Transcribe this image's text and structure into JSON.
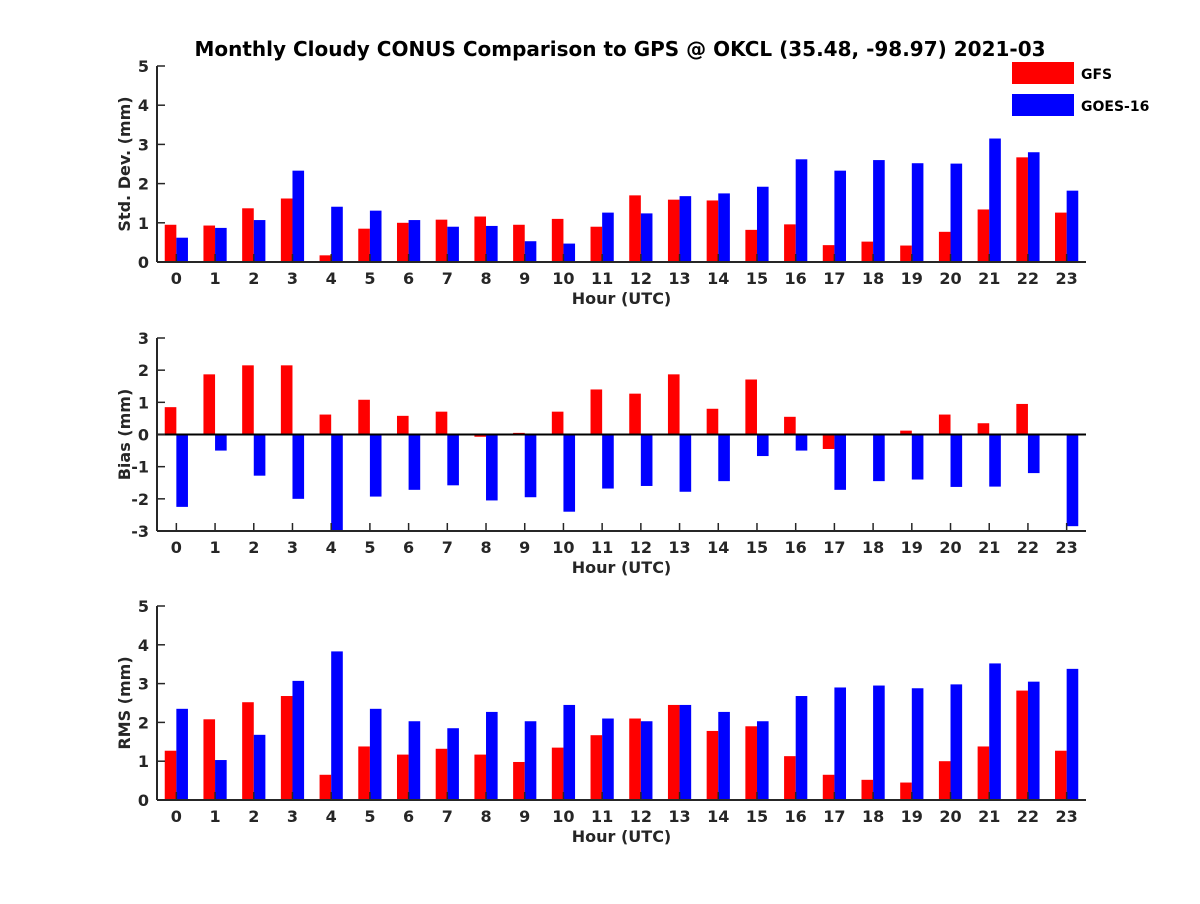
{
  "chart_data": {
    "type": "bar",
    "title": "Monthly Cloudy CONUS Comparison to GPS @ OKCL (35.48, -98.97) 2021-03",
    "legend": {
      "placement": "top-right",
      "entries": [
        {
          "name": "GFS",
          "color": "#ff0000"
        },
        {
          "name": "GOES-16",
          "color": "#0000ff"
        }
      ]
    },
    "categories": [
      "0",
      "1",
      "2",
      "3",
      "4",
      "5",
      "6",
      "7",
      "8",
      "9",
      "10",
      "11",
      "12",
      "13",
      "14",
      "15",
      "16",
      "17",
      "18",
      "19",
      "20",
      "21",
      "22",
      "23"
    ],
    "panels": [
      {
        "ylabel": "Std. Dev. (mm)",
        "xlabel": "Hour (UTC)",
        "ylim": [
          0,
          5
        ],
        "yticks": [
          "0",
          "1",
          "2",
          "3",
          "4",
          "5"
        ],
        "series": [
          {
            "name": "GFS",
            "color": "#ff0000",
            "values": [
              0.95,
              0.93,
              1.37,
              1.62,
              0.17,
              0.85,
              1.0,
              1.08,
              1.16,
              0.95,
              1.1,
              0.9,
              1.7,
              1.59,
              1.57,
              0.82,
              0.96,
              0.43,
              0.52,
              0.42,
              0.77,
              1.34,
              2.67,
              1.26
            ]
          },
          {
            "name": "GOES-16",
            "color": "#0000ff",
            "values": [
              0.62,
              0.87,
              1.07,
              2.33,
              1.41,
              1.31,
              1.07,
              0.9,
              0.92,
              0.53,
              0.47,
              1.26,
              1.24,
              1.68,
              1.75,
              1.92,
              2.62,
              2.33,
              2.6,
              2.52,
              2.51,
              3.15,
              2.8,
              1.82
            ]
          }
        ]
      },
      {
        "ylabel": "Bias (mm)",
        "xlabel": "Hour (UTC)",
        "ylim": [
          -3,
          3
        ],
        "yticks": [
          "-3",
          "-2",
          "-1",
          "0",
          "1",
          "2",
          "3"
        ],
        "series": [
          {
            "name": "GFS",
            "color": "#ff0000",
            "values": [
              0.85,
              1.87,
              2.15,
              2.15,
              0.62,
              1.08,
              0.58,
              0.71,
              -0.07,
              0.05,
              0.71,
              1.4,
              1.27,
              1.87,
              0.8,
              1.71,
              0.55,
              -0.45,
              0.02,
              0.12,
              0.62,
              0.35,
              0.95,
              0.02
            ]
          },
          {
            "name": "GOES-16",
            "color": "#0000ff",
            "values": [
              -2.25,
              -0.5,
              -1.28,
              -2.0,
              -3.0,
              -1.93,
              -1.72,
              -1.58,
              -2.05,
              -1.95,
              -2.4,
              -1.68,
              -1.6,
              -1.78,
              -1.45,
              -0.67,
              -0.5,
              -1.72,
              -1.45,
              -1.4,
              -1.63,
              -1.62,
              -1.2,
              -2.85
            ]
          }
        ]
      },
      {
        "ylabel": "RMS (mm)",
        "xlabel": "Hour (UTC)",
        "ylim": [
          0,
          5
        ],
        "yticks": [
          "0",
          "1",
          "2",
          "3",
          "4",
          "5"
        ],
        "series": [
          {
            "name": "GFS",
            "color": "#ff0000",
            "values": [
              1.27,
              2.08,
              2.52,
              2.68,
              0.65,
              1.38,
              1.17,
              1.32,
              1.17,
              0.98,
              1.35,
              1.67,
              2.1,
              2.45,
              1.78,
              1.9,
              1.13,
              0.65,
              0.52,
              0.45,
              1.0,
              1.38,
              2.82,
              1.27
            ]
          },
          {
            "name": "GOES-16",
            "color": "#0000ff",
            "values": [
              2.35,
              1.03,
              1.68,
              3.07,
              3.83,
              2.35,
              2.03,
              1.85,
              2.27,
              2.03,
              2.45,
              2.1,
              2.03,
              2.45,
              2.27,
              2.03,
              2.68,
              2.9,
              2.95,
              2.88,
              2.98,
              3.52,
              3.05,
              3.38
            ]
          }
        ]
      }
    ]
  }
}
